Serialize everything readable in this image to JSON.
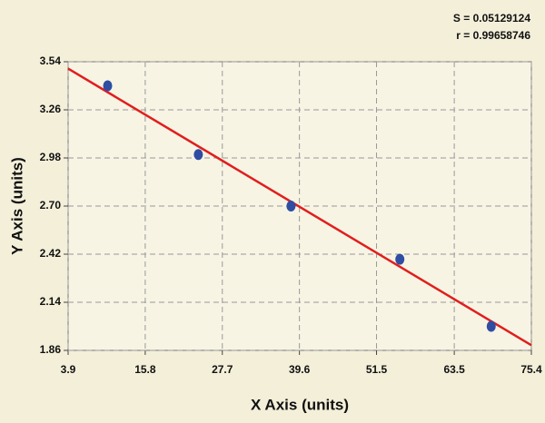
{
  "chart_data": {
    "type": "scatter",
    "annotations": [
      "S = 0.05129124",
      "r = 0.99658746"
    ],
    "x_label": "X Axis (units)",
    "y_label": "Y Axis (units)",
    "series": [
      {
        "color": "#2f4da3",
        "x": [
          10,
          24,
          38.3,
          55.1,
          69.2
        ],
        "values": [
          3.4,
          3.0,
          2.7,
          2.39,
          2.0
        ]
      }
    ],
    "fit_line": {
      "color": "#e01e1e",
      "x": [
        3.9,
        75.4
      ],
      "y": [
        3.5,
        1.89
      ]
    },
    "xlim": [
      3.9,
      75.4
    ],
    "xticks": [
      3.9,
      15.8,
      27.7,
      39.6,
      51.5,
      63.5,
      75.4
    ],
    "ylim": [
      1.86,
      3.54
    ],
    "yticks": [
      1.86,
      2.14,
      2.42,
      {
        "value": 2.7,
        "label": "2.70"
      },
      2.98,
      3.26,
      3.54
    ],
    "grid": true
  }
}
